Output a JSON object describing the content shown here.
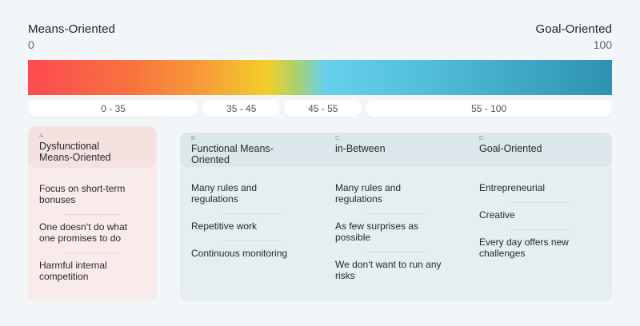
{
  "scale": {
    "left_label": "Means-Oriented",
    "right_label": "Goal-Oriented",
    "min_value": "0",
    "max_value": "100",
    "gradient_colors": [
      "#fd4a52",
      "#f79c38",
      "#f2cf2a",
      "#66d0ee",
      "#2e92b2"
    ],
    "background_color": "#f2f6f8",
    "ranges": [
      {
        "label": "0 - 35"
      },
      {
        "label": "35 - 45"
      },
      {
        "label": "45 - 55"
      },
      {
        "label": "55 - 100"
      }
    ]
  },
  "columns": [
    {
      "letter": "A.",
      "title": "Dysfunctional Means-Oriented",
      "theme_header": "#f6e1e1",
      "theme_body": "#f9ebea",
      "items": [
        "Focus on short-term bonuses",
        "One doesn‘t do what one promises to do",
        "Harmful internal competition"
      ]
    },
    {
      "letter": "B.",
      "title": "Functional Means-Oriented",
      "theme_header": "#dbe7ea",
      "theme_body": "#e5eef1",
      "items": [
        "Many rules and regulations",
        "Repetitive work",
        "Continuous monitoring"
      ]
    },
    {
      "letter": "C.",
      "title": "in-Between",
      "theme_header": "#dbe7ea",
      "theme_body": "#e5eef1",
      "items": [
        "Many rules and regulations",
        "As few surprises as possible",
        "We don‘t want to run any risks"
      ]
    },
    {
      "letter": "D.",
      "title": "Goal-Oriented",
      "theme_header": "#dbe7ea",
      "theme_body": "#e5eef1",
      "items": [
        "Entrepreneurial",
        "Creative",
        "Every day offers new challenges"
      ]
    }
  ]
}
